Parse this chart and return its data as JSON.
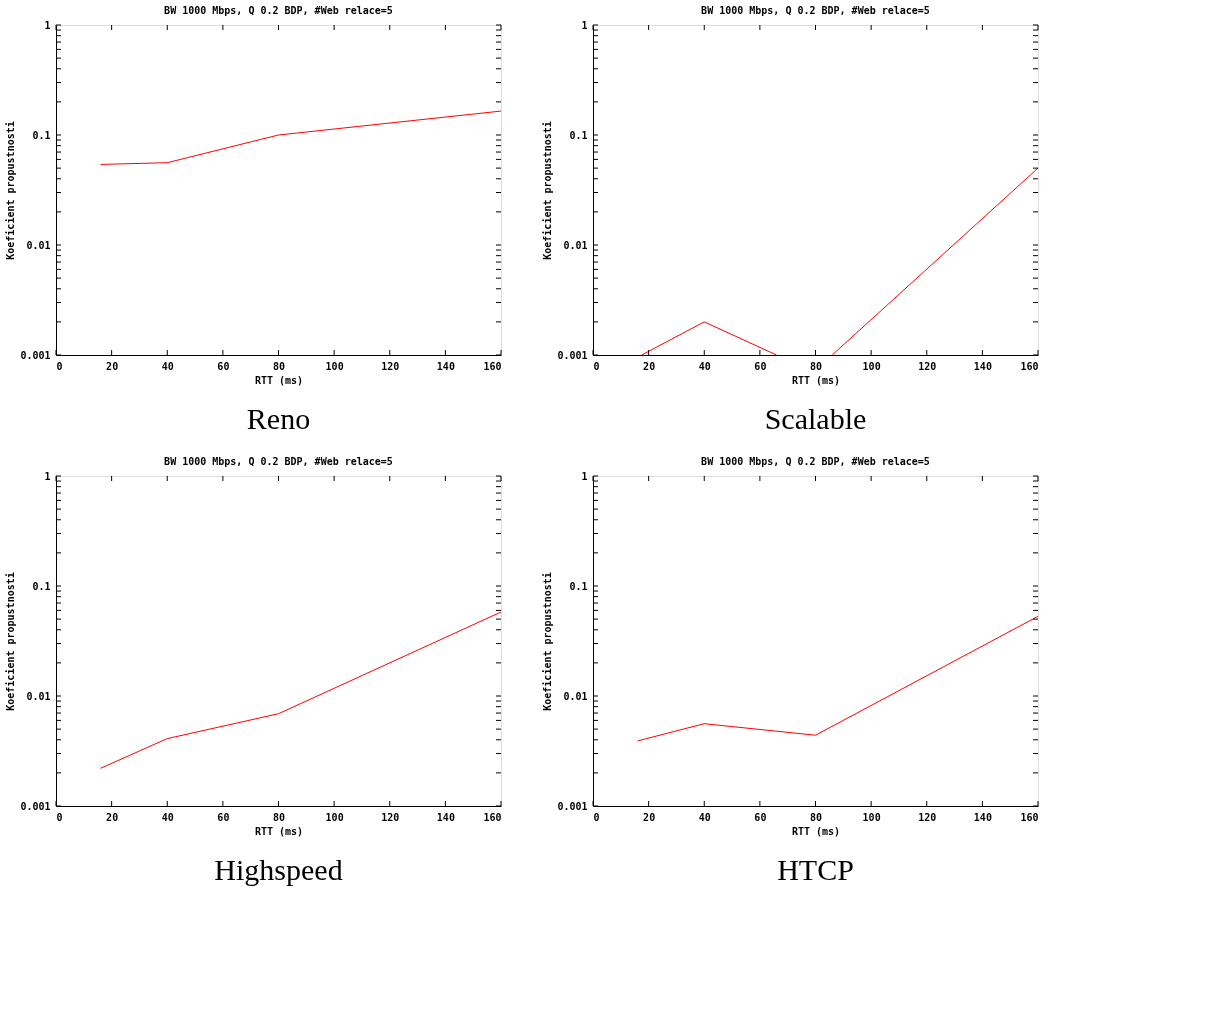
{
  "chart_data": [
    {
      "type": "line",
      "title": "BW 1000 Mbps, Q 0.2 BDP, #Web relace=5",
      "xlabel": "RTT (ms)",
      "ylabel": "Koeficient propustnosti",
      "annotations": [
        "Reno"
      ],
      "log": "y",
      "grid": false,
      "xlim": [
        0,
        160
      ],
      "xticks": [
        0,
        20,
        40,
        60,
        80,
        100,
        120,
        140,
        160
      ],
      "ylim": [
        0.001,
        1
      ],
      "yticks": [
        0.001,
        {
          "value": 0.002,
          "label": null
        },
        {
          "value": 0.003,
          "label": null
        },
        {
          "value": 0.004,
          "label": null
        },
        {
          "value": 0.005,
          "label": null
        },
        {
          "value": 0.006,
          "label": null
        },
        {
          "value": 0.007,
          "label": null
        },
        {
          "value": 0.008,
          "label": null
        },
        {
          "value": 0.009,
          "label": null
        },
        0.01,
        {
          "value": 0.02,
          "label": null
        },
        {
          "value": 0.03,
          "label": null
        },
        {
          "value": 0.04,
          "label": null
        },
        {
          "value": 0.05,
          "label": null
        },
        {
          "value": 0.06,
          "label": null
        },
        {
          "value": 0.07,
          "label": null
        },
        {
          "value": 0.08,
          "label": null
        },
        {
          "value": 0.09,
          "label": null
        },
        0.1,
        {
          "value": 0.2,
          "label": null
        },
        {
          "value": 0.3,
          "label": null
        },
        {
          "value": 0.4,
          "label": null
        },
        {
          "value": 0.5,
          "label": null
        },
        {
          "value": 0.6,
          "label": null
        },
        {
          "value": 0.7,
          "label": null
        },
        {
          "value": 0.8,
          "label": null
        },
        {
          "value": 0.9,
          "label": null
        },
        1
      ],
      "x": [
        16,
        40,
        80,
        160
      ],
      "series": [
        {
          "color": "#ff0000",
          "values": [
            0.054,
            0.056,
            0.1,
            0.165
          ]
        }
      ]
    },
    {
      "type": "line",
      "title": "BW 1000 Mbps, Q 0.2 BDP, #Web relace=5",
      "xlabel": "RTT (ms)",
      "ylabel": "Koeficient propustnosti",
      "annotations": [
        "Scalable"
      ],
      "log": "y",
      "grid": false,
      "xlim": [
        0,
        160
      ],
      "xticks": [
        0,
        20,
        40,
        60,
        80,
        100,
        120,
        140,
        160
      ],
      "ylim": [
        0.001,
        1
      ],
      "yticks": [
        0.001,
        {
          "value": 0.002,
          "label": null
        },
        {
          "value": 0.003,
          "label": null
        },
        {
          "value": 0.004,
          "label": null
        },
        {
          "value": 0.005,
          "label": null
        },
        {
          "value": 0.006,
          "label": null
        },
        {
          "value": 0.007,
          "label": null
        },
        {
          "value": 0.008,
          "label": null
        },
        {
          "value": 0.009,
          "label": null
        },
        0.01,
        {
          "value": 0.02,
          "label": null
        },
        {
          "value": 0.03,
          "label": null
        },
        {
          "value": 0.04,
          "label": null
        },
        {
          "value": 0.05,
          "label": null
        },
        {
          "value": 0.06,
          "label": null
        },
        {
          "value": 0.07,
          "label": null
        },
        {
          "value": 0.08,
          "label": null
        },
        {
          "value": 0.09,
          "label": null
        },
        0.1,
        {
          "value": 0.2,
          "label": null
        },
        {
          "value": 0.3,
          "label": null
        },
        {
          "value": 0.4,
          "label": null
        },
        {
          "value": 0.5,
          "label": null
        },
        {
          "value": 0.6,
          "label": null
        },
        {
          "value": 0.7,
          "label": null
        },
        {
          "value": 0.8,
          "label": null
        },
        {
          "value": 0.9,
          "label": null
        },
        1
      ],
      "x": [
        17.5,
        40,
        66,
        76,
        86,
        160
      ],
      "series": [
        {
          "color": "#ff0000",
          "values": [
            0.001,
            0.002,
            0.001,
            null,
            0.001,
            0.05
          ]
        }
      ]
    },
    {
      "type": "line",
      "title": "BW 1000 Mbps, Q 0.2 BDP, #Web relace=5",
      "xlabel": "RTT (ms)",
      "ylabel": "Koeficient propustnosti",
      "annotations": [
        "Highspeed"
      ],
      "log": "y",
      "grid": false,
      "xlim": [
        0,
        160
      ],
      "xticks": [
        0,
        20,
        40,
        60,
        80,
        100,
        120,
        140,
        160
      ],
      "ylim": [
        0.001,
        1
      ],
      "yticks": [
        0.001,
        {
          "value": 0.002,
          "label": null
        },
        {
          "value": 0.003,
          "label": null
        },
        {
          "value": 0.004,
          "label": null
        },
        {
          "value": 0.005,
          "label": null
        },
        {
          "value": 0.006,
          "label": null
        },
        {
          "value": 0.007,
          "label": null
        },
        {
          "value": 0.008,
          "label": null
        },
        {
          "value": 0.009,
          "label": null
        },
        0.01,
        {
          "value": 0.02,
          "label": null
        },
        {
          "value": 0.03,
          "label": null
        },
        {
          "value": 0.04,
          "label": null
        },
        {
          "value": 0.05,
          "label": null
        },
        {
          "value": 0.06,
          "label": null
        },
        {
          "value": 0.07,
          "label": null
        },
        {
          "value": 0.08,
          "label": null
        },
        {
          "value": 0.09,
          "label": null
        },
        0.1,
        {
          "value": 0.2,
          "label": null
        },
        {
          "value": 0.3,
          "label": null
        },
        {
          "value": 0.4,
          "label": null
        },
        {
          "value": 0.5,
          "label": null
        },
        {
          "value": 0.6,
          "label": null
        },
        {
          "value": 0.7,
          "label": null
        },
        {
          "value": 0.8,
          "label": null
        },
        {
          "value": 0.9,
          "label": null
        },
        1
      ],
      "x": [
        16,
        40,
        80,
        160
      ],
      "series": [
        {
          "color": "#ff0000",
          "values": [
            0.0022,
            0.0041,
            0.0069,
            0.058
          ]
        }
      ]
    },
    {
      "type": "line",
      "title": "BW 1000 Mbps, Q 0.2 BDP, #Web relace=5",
      "xlabel": "RTT (ms)",
      "ylabel": "Koeficient propustnosti",
      "annotations": [
        "HTCP"
      ],
      "log": "y",
      "grid": false,
      "xlim": [
        0,
        160
      ],
      "xticks": [
        0,
        20,
        40,
        60,
        80,
        100,
        120,
        140,
        160
      ],
      "ylim": [
        0.001,
        1
      ],
      "yticks": [
        0.001,
        {
          "value": 0.002,
          "label": null
        },
        {
          "value": 0.003,
          "label": null
        },
        {
          "value": 0.004,
          "label": null
        },
        {
          "value": 0.005,
          "label": null
        },
        {
          "value": 0.006,
          "label": null
        },
        {
          "value": 0.007,
          "label": null
        },
        {
          "value": 0.008,
          "label": null
        },
        {
          "value": 0.009,
          "label": null
        },
        0.01,
        {
          "value": 0.02,
          "label": null
        },
        {
          "value": 0.03,
          "label": null
        },
        {
          "value": 0.04,
          "label": null
        },
        {
          "value": 0.05,
          "label": null
        },
        {
          "value": 0.06,
          "label": null
        },
        {
          "value": 0.07,
          "label": null
        },
        {
          "value": 0.08,
          "label": null
        },
        {
          "value": 0.09,
          "label": null
        },
        0.1,
        {
          "value": 0.2,
          "label": null
        },
        {
          "value": 0.3,
          "label": null
        },
        {
          "value": 0.4,
          "label": null
        },
        {
          "value": 0.5,
          "label": null
        },
        {
          "value": 0.6,
          "label": null
        },
        {
          "value": 0.7,
          "label": null
        },
        {
          "value": 0.8,
          "label": null
        },
        {
          "value": 0.9,
          "label": null
        },
        1
      ],
      "x": [
        16,
        40,
        80,
        160
      ],
      "series": [
        {
          "color": "#ff0000",
          "values": [
            0.0039,
            0.0056,
            0.0044,
            0.053
          ]
        }
      ]
    }
  ]
}
